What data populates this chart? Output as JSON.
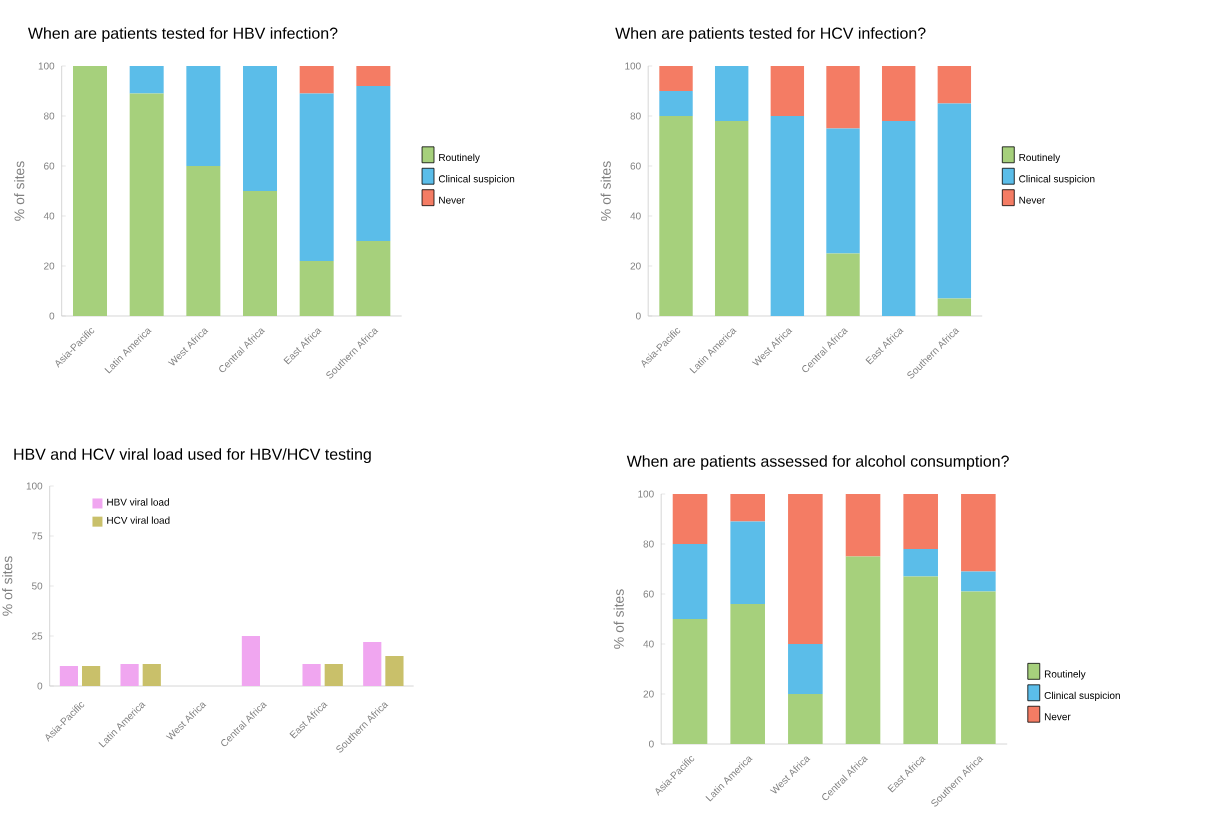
{
  "chart_data": [
    {
      "type": "bar",
      "title": "When are patients tested for HBV infection?",
      "ylabel": "% of sites",
      "categories": [
        "Asia-Pacific",
        "Latin America",
        "West Africa",
        "Central Africa",
        "East Africa",
        "Southern Africa"
      ],
      "stacked": true,
      "legend": "right",
      "ylim": [
        0,
        100
      ],
      "yticks": [
        0,
        20,
        40,
        60,
        80,
        100
      ],
      "series": [
        {
          "name": "Routinely",
          "color": "#a6d07c",
          "values": [
            100,
            89,
            60,
            50,
            22,
            30
          ]
        },
        {
          "name": "Clinical suspicion",
          "color": "#5bbde9",
          "values": [
            0,
            11,
            40,
            50,
            67,
            62
          ]
        },
        {
          "name": "Never",
          "color": "#f47c64",
          "values": [
            0,
            0,
            0,
            0,
            11,
            8
          ]
        }
      ]
    },
    {
      "type": "bar",
      "title": "When are patients tested for HCV infection?",
      "ylabel": "% of sites",
      "categories": [
        "Asia-Pacific",
        "Latin America",
        "West Africa",
        "Central Africa",
        "East Africa",
        "Southern Africa"
      ],
      "stacked": true,
      "legend": "right",
      "ylim": [
        0,
        100
      ],
      "yticks": [
        0,
        20,
        40,
        60,
        80,
        100
      ],
      "series": [
        {
          "name": "Routinely",
          "color": "#a6d07c",
          "values": [
            80,
            78,
            0,
            25,
            0,
            7
          ]
        },
        {
          "name": "Clinical suspicion",
          "color": "#5bbde9",
          "values": [
            10,
            22,
            80,
            50,
            78,
            78
          ]
        },
        {
          "name": "Never",
          "color": "#f47c64",
          "values": [
            10,
            0,
            20,
            25,
            22,
            15
          ]
        }
      ]
    },
    {
      "type": "bar",
      "title": "HBV and HCV viral load used for HBV/HCV testing",
      "ylabel": "% of sites",
      "categories": [
        "Asia-Pacific",
        "Latin America",
        "West Africa",
        "Central Africa",
        "East Africa",
        "Southern Africa"
      ],
      "legend": "top left",
      "ylim": [
        0,
        100
      ],
      "yticks": [
        0,
        25,
        50,
        75,
        100
      ],
      "series": [
        {
          "name": "HBV viral load",
          "color": "#f0a6f0",
          "values": [
            10,
            11,
            0,
            25,
            11,
            22
          ]
        },
        {
          "name": "HCV viral load",
          "color": "#c9c06a",
          "values": [
            10,
            11,
            0,
            0,
            11,
            15
          ]
        }
      ]
    },
    {
      "type": "bar",
      "title": "When are patients assessed for alcohol consumption?",
      "ylabel": "% of sites",
      "categories": [
        "Asia-Pacific",
        "Latin America",
        "West Africa",
        "Central Africa",
        "East Africa",
        "Southern Africa"
      ],
      "stacked": true,
      "legend": "bottom right",
      "ylim": [
        0,
        100
      ],
      "yticks": [
        0,
        20,
        40,
        60,
        80,
        100
      ],
      "series": [
        {
          "name": "Routinely",
          "color": "#a6d07c",
          "values": [
            50,
            56,
            20,
            75,
            67,
            61
          ]
        },
        {
          "name": "Clinical suspicion",
          "color": "#5bbde9",
          "values": [
            30,
            33,
            20,
            0,
            11,
            8
          ]
        },
        {
          "name": "Never",
          "color": "#f47c64",
          "values": [
            20,
            11,
            60,
            25,
            22,
            31
          ]
        }
      ]
    }
  ]
}
